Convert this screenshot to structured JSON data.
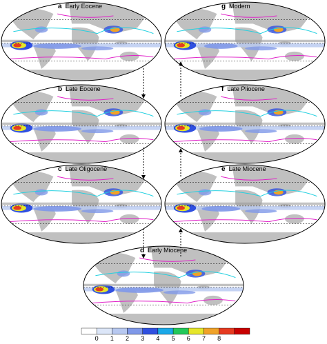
{
  "figure": {
    "panels": [
      {
        "letter": "a",
        "title": "Early Eocene"
      },
      {
        "letter": "b",
        "title": "Late Eocene"
      },
      {
        "letter": "c",
        "title": "Late Oligocene"
      },
      {
        "letter": "d",
        "title": "Early Miocene"
      },
      {
        "letter": "e",
        "title": "Late Miocene"
      },
      {
        "letter": "f",
        "title": "Late Pliocene"
      },
      {
        "letter": "g",
        "title": "Modern"
      }
    ],
    "colorbar": {
      "ticks": [
        "0",
        "1",
        "2",
        "3",
        "4",
        "5",
        "6",
        "7",
        "8"
      ],
      "colors": [
        "#ffffff",
        "#dce6f8",
        "#b7c8f0",
        "#7f98e8",
        "#3050e0",
        "#1aa8e8",
        "#22c85a",
        "#e6e62a",
        "#f0a228",
        "#e63a20",
        "#c80000"
      ]
    },
    "colors": {
      "land": "#c0c0c0",
      "ocean": "#ffffff",
      "contour_cyan": "#22d0e0",
      "contour_magenta": "#e020c8",
      "outline": "#000000"
    },
    "arrows": [
      {
        "from": "a",
        "to": "b"
      },
      {
        "from": "b",
        "to": "c"
      },
      {
        "from": "c",
        "to": "d"
      },
      {
        "from": "d",
        "to": "e"
      },
      {
        "from": "e",
        "to": "f"
      },
      {
        "from": "f",
        "to": "g"
      }
    ]
  }
}
